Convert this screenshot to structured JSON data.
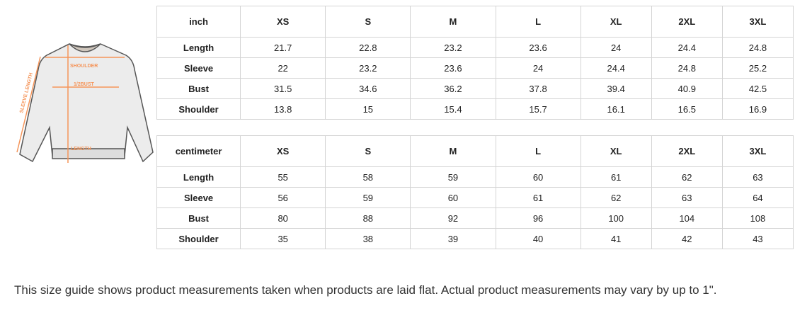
{
  "diagram": {
    "labels": {
      "shoulder": "SHOULDER",
      "bust": "1/2BUST",
      "length": "LENGTH",
      "sleeve": "SLEEVE LENGTH"
    },
    "accent_color": "#f5955a"
  },
  "sizes": [
    "XS",
    "S",
    "M",
    "L",
    "XL",
    "2XL",
    "3XL"
  ],
  "inch_table": {
    "unit": "inch",
    "rows": [
      {
        "label": "Length",
        "values": [
          "21.7",
          "22.8",
          "23.2",
          "23.6",
          "24",
          "24.4",
          "24.8"
        ]
      },
      {
        "label": "Sleeve",
        "values": [
          "22",
          "23.2",
          "23.6",
          "24",
          "24.4",
          "24.8",
          "25.2"
        ]
      },
      {
        "label": "Bust",
        "values": [
          "31.5",
          "34.6",
          "36.2",
          "37.8",
          "39.4",
          "40.9",
          "42.5"
        ]
      },
      {
        "label": "Shoulder",
        "values": [
          "13.8",
          "15",
          "15.4",
          "15.7",
          "16.1",
          "16.5",
          "16.9"
        ]
      }
    ]
  },
  "cm_table": {
    "unit": "centimeter",
    "rows": [
      {
        "label": "Length",
        "values": [
          "55",
          "58",
          "59",
          "60",
          "61",
          "62",
          "63"
        ]
      },
      {
        "label": "Sleeve",
        "values": [
          "56",
          "59",
          "60",
          "61",
          "62",
          "63",
          "64"
        ]
      },
      {
        "label": "Bust",
        "values": [
          "80",
          "88",
          "92",
          "96",
          "100",
          "104",
          "108"
        ]
      },
      {
        "label": "Shoulder",
        "values": [
          "35",
          "38",
          "39",
          "40",
          "41",
          "42",
          "43"
        ]
      }
    ]
  },
  "note": "This size guide shows product measurements taken when products are laid flat. Actual product measurements may vary by up to 1\"."
}
